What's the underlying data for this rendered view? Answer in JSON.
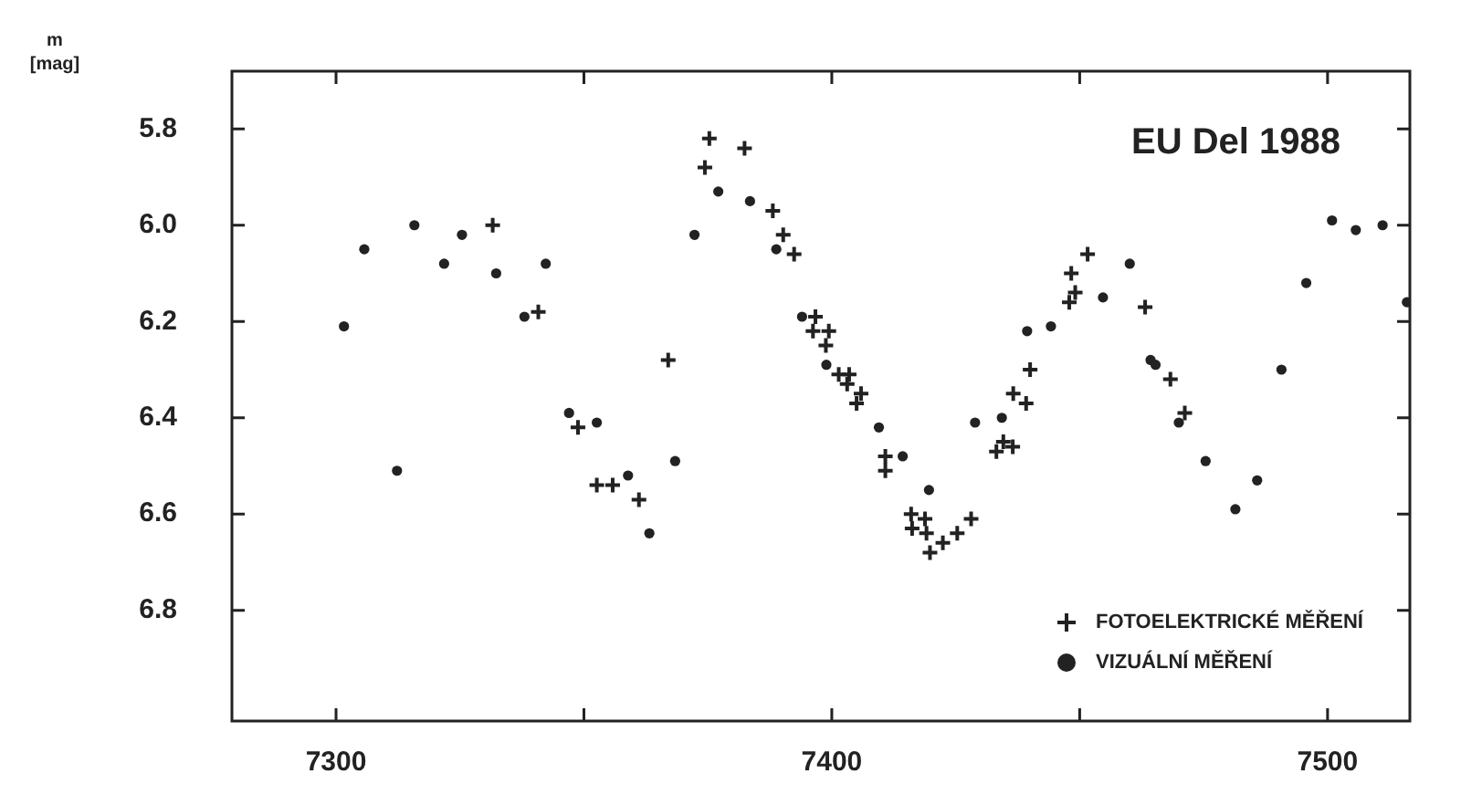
{
  "chart_data": {
    "type": "scatter",
    "title": "EU Del 1988",
    "ylabel": "m [mag]",
    "xlim": [
      7279,
      7516.6
    ],
    "xticks": [
      7300,
      {
        "value": 7350,
        "label": null
      },
      7400,
      {
        "value": 7450,
        "label": null
      },
      7500
    ],
    "ylim": [
      7.03,
      5.68
    ],
    "yticks": [
      5.8,
      {
        "value": 6,
        "label": "6.0"
      },
      6.2,
      6.4,
      6.6,
      6.8
    ],
    "legend": "bottom right",
    "series": [
      {
        "name": "FOTOELEKTRICKÉ MĚŘENÍ",
        "color": "#222222",
        "marker": "cross",
        "x": [
          7331.6,
          7340.8,
          7348.8,
          7352.6,
          7355.8,
          7361.1,
          7367,
          7374.4,
          7375.3,
          7382.4,
          7388.1,
          7390.2,
          7392.4,
          7396.7,
          7396.2,
          7399.4,
          7398.8,
          7401.4,
          7403.5,
          7403.1,
          7405.9,
          7405,
          7410.8,
          7410.8,
          7416,
          7416.2,
          7418.8,
          7419.1,
          7419.8,
          7422.4,
          7425.3,
          7428.1,
          7433.2,
          7434.6,
          7436.5,
          7436.6,
          7439.2,
          7440,
          7447.9,
          7449.1,
          7448.3,
          7451.6,
          7463.2,
          7468.3,
          7471.2
        ],
        "values": [
          6.0,
          6.18,
          6.42,
          6.54,
          6.54,
          6.57,
          6.28,
          5.88,
          5.82,
          5.84,
          5.97,
          6.02,
          6.06,
          6.19,
          6.22,
          6.22,
          6.25,
          6.31,
          6.31,
          6.33,
          6.35,
          6.37,
          6.48,
          6.51,
          6.6,
          6.63,
          6.61,
          6.64,
          6.68,
          6.66,
          6.64,
          6.61,
          6.47,
          6.45,
          6.46,
          6.35,
          6.37,
          6.3,
          6.16,
          6.14,
          6.1,
          6.06,
          6.17,
          6.32,
          6.39
        ]
      },
      {
        "name": "VIZUÁLNÍ MĚŘENÍ",
        "color": "#222222",
        "marker": "circle",
        "x": [
          7301.6,
          7305.7,
          7312.3,
          7315.8,
          7321.8,
          7325.4,
          7332.3,
          7338,
          7342.3,
          7347,
          7352.6,
          7358.9,
          7363.2,
          7368.4,
          7372.3,
          7377.1,
          7383.5,
          7388.8,
          7394,
          7398.9,
          7409.5,
          7414.3,
          7419.6,
          7428.9,
          7434.3,
          7439.4,
          7444.2,
          7454.7,
          7460.1,
          7464.3,
          7465.3,
          7470,
          7475.4,
          7481.4,
          7485.8,
          7490.7,
          7495.7,
          7500.9,
          7505.7,
          7511.1,
          7516
        ],
        "values": [
          6.21,
          6.05,
          6.51,
          6.0,
          6.08,
          6.02,
          6.1,
          6.19,
          6.08,
          6.39,
          6.41,
          6.52,
          6.64,
          6.49,
          6.02,
          5.93,
          5.95,
          6.05,
          6.19,
          6.29,
          6.42,
          6.48,
          6.55,
          6.41,
          6.4,
          6.22,
          6.21,
          6.15,
          6.08,
          6.28,
          6.29,
          6.41,
          6.49,
          6.59,
          6.53,
          6.3,
          6.12,
          5.99,
          6.01,
          6.0,
          6.16
        ]
      }
    ]
  }
}
